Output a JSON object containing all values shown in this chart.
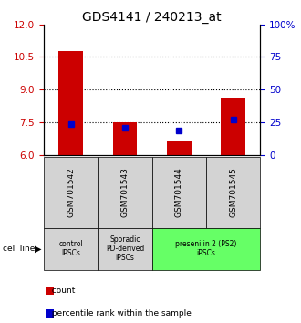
{
  "title": "GDS4141 / 240213_at",
  "samples": [
    "GSM701542",
    "GSM701543",
    "GSM701544",
    "GSM701545"
  ],
  "count_values": [
    10.78,
    7.52,
    6.62,
    8.62
  ],
  "percentile_values": [
    24,
    21,
    19,
    27
  ],
  "ylim_left": [
    6,
    12
  ],
  "ylim_right": [
    0,
    100
  ],
  "yticks_left": [
    6,
    7.5,
    9,
    10.5,
    12
  ],
  "yticks_right": [
    0,
    25,
    50,
    75,
    100
  ],
  "ytick_labels_right": [
    "0",
    "25",
    "50",
    "75",
    "100%"
  ],
  "hlines": [
    7.5,
    9,
    10.5
  ],
  "bar_color": "#cc0000",
  "percentile_color": "#0000cc",
  "bar_width": 0.45,
  "group_labels": [
    "control\nIPSCs",
    "Sporadic\nPD-derived\niPSCs",
    "presenilin 2 (PS2)\niPSCs"
  ],
  "group_colors": [
    "#d3d3d3",
    "#d3d3d3",
    "#66ff66"
  ],
  "cell_line_label": "cell line",
  "legend_count_label": "count",
  "legend_percentile_label": "percentile rank within the sample",
  "bg_color": "#ffffff",
  "axis_label_color_left": "#cc0000",
  "axis_label_color_right": "#0000cc",
  "title_fontsize": 10,
  "tick_fontsize": 7.5,
  "sample_tick_fontsize": 6.5
}
